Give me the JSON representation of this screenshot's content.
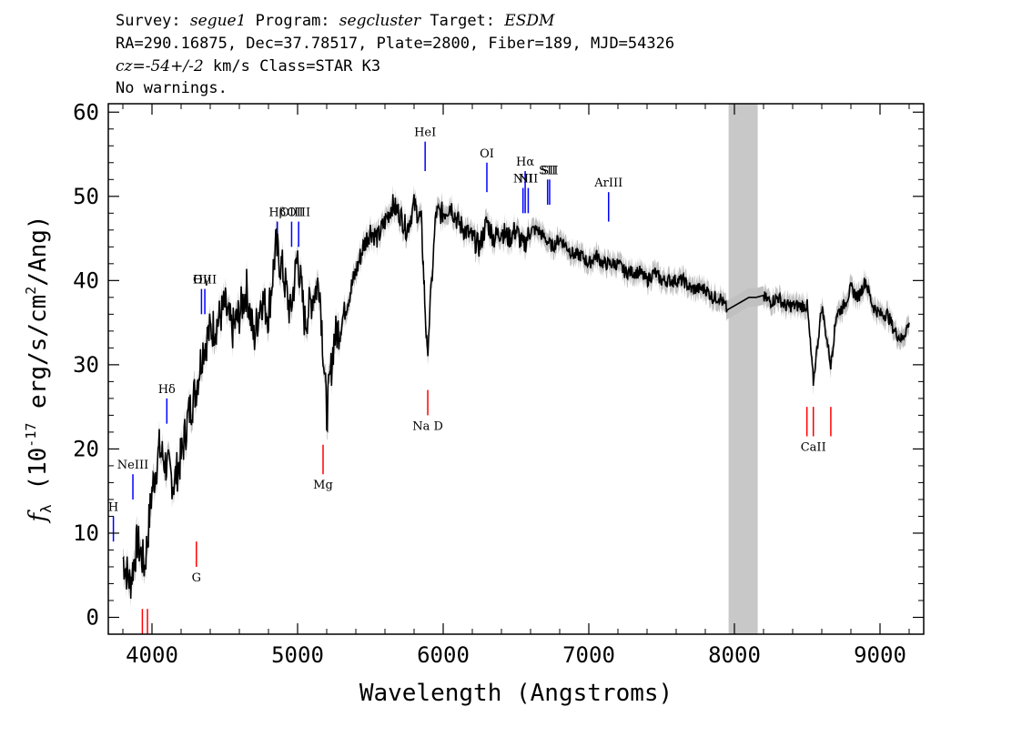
{
  "header": {
    "survey_label": "Survey:",
    "survey": "segue1",
    "program_label": "Program:",
    "program": "segcluster",
    "target_label": "Target:",
    "target": "ESDM",
    "line2": "RA=290.16875, Dec=37.78517, Plate=2800, Fiber=189, MJD=54326",
    "cz_prefix": "cz=",
    "cz_value": "-54+/-2",
    "cz_suffix": " km/s Class=STAR K3",
    "line4": "No warnings."
  },
  "chart_data": {
    "type": "line",
    "xlabel": "Wavelength (Angstroms)",
    "ylabel_prefix": "f",
    "ylabel_sub": "λ",
    "ylabel_mid": " (10",
    "ylabel_exp1": "-17",
    "ylabel_mid2": " erg/s/cm",
    "ylabel_exp2": "2",
    "ylabel_suffix": "/Ang)",
    "xlim": [
      3700,
      9300
    ],
    "ylim": [
      -2,
      61
    ],
    "xticks": [
      4000,
      5000,
      6000,
      7000,
      8000,
      9000
    ],
    "yticks": [
      0,
      10,
      20,
      30,
      40,
      50,
      60
    ],
    "xtick_labels": [
      "4000",
      "5000",
      "6000",
      "7000",
      "8000",
      "9000"
    ],
    "ytick_labels": [
      "0",
      "10",
      "20",
      "30",
      "40",
      "50",
      "60"
    ],
    "masked_region": [
      7960,
      8160
    ],
    "colors": {
      "spectrum": "#000000",
      "error": "#c0c0c0",
      "mask": "#c8c8c8",
      "emission": "#0000ff",
      "absorption": "#ff0000"
    },
    "spectrum_x": [
      3800,
      3850,
      3900,
      3950,
      4000,
      4050,
      4100,
      4150,
      4200,
      4250,
      4300,
      4350,
      4400,
      4450,
      4500,
      4550,
      4600,
      4650,
      4700,
      4750,
      4800,
      4850,
      4900,
      4950,
      5000,
      5050,
      5100,
      5150,
      5200,
      5250,
      5300,
      5350,
      5400,
      5450,
      5500,
      5550,
      5600,
      5650,
      5700,
      5750,
      5800,
      5850,
      5890,
      5950,
      6000,
      6050,
      6100,
      6150,
      6200,
      6250,
      6300,
      6350,
      6400,
      6450,
      6500,
      6550,
      6600,
      6650,
      6700,
      6750,
      6800,
      6850,
      6900,
      6950,
      7000,
      7050,
      7100,
      7150,
      7200,
      7250,
      7300,
      7350,
      7400,
      7450,
      7500,
      7550,
      7600,
      7650,
      7700,
      7750,
      7800,
      7850,
      7900,
      7950,
      8000,
      8050,
      8100,
      8150,
      8200,
      8250,
      8300,
      8350,
      8400,
      8450,
      8500,
      8542,
      8600,
      8662,
      8700,
      8750,
      8800,
      8850,
      8900,
      8950,
      9000,
      9050,
      9100,
      9150,
      9200
    ],
    "spectrum_y": [
      7,
      4,
      9,
      6,
      15,
      20,
      18,
      16,
      19,
      24,
      27,
      32,
      34,
      35,
      37,
      34,
      36,
      39,
      33,
      38,
      36,
      44,
      41,
      36,
      43,
      35,
      38,
      40,
      24,
      33,
      35,
      38,
      41,
      44,
      46,
      45,
      47,
      49,
      48,
      46,
      49,
      47,
      31,
      48,
      48,
      49,
      47,
      46,
      45,
      44,
      47,
      45,
      46,
      45,
      46,
      44,
      46,
      46,
      45,
      44,
      45,
      44,
      43,
      43,
      42,
      43,
      42,
      42,
      42,
      41,
      41,
      41,
      40,
      41,
      40,
      40,
      40,
      40,
      39,
      39,
      39,
      38,
      38,
      36.5,
      37,
      37.5,
      38,
      38,
      38,
      37.5,
      38,
      37,
      37,
      37,
      37,
      28,
      37,
      30,
      36,
      37,
      39,
      38,
      40,
      37,
      36,
      36,
      34,
      33,
      35
    ],
    "emission_lines": [
      {
        "label": "H",
        "x": 3735,
        "y0": 9,
        "y1": 12
      },
      {
        "label": "NeIII",
        "x": 3869,
        "y0": 14,
        "y1": 17
      },
      {
        "label": "Hδ",
        "x": 4102,
        "y0": 23,
        "y1": 26
      },
      {
        "label": "Hγ",
        "x": 4340,
        "y0": 36,
        "y1": 39
      },
      {
        "label": "OIII",
        "x": 4363,
        "y0": 36,
        "y1": 39
      },
      {
        "label": "Hβ",
        "x": 4861,
        "y0": 44,
        "y1": 47
      },
      {
        "label": "OIII",
        "x": 4959,
        "y0": 44,
        "y1": 47
      },
      {
        "label": "OIII",
        "x": 5007,
        "y0": 44,
        "y1": 47
      },
      {
        "label": "HeI",
        "x": 5876,
        "y0": 53,
        "y1": 56.5
      },
      {
        "label": "OI",
        "x": 6300,
        "y0": 50.5,
        "y1": 54
      },
      {
        "label": "NII",
        "x": 6548,
        "y0": 48,
        "y1": 51
      },
      {
        "label": "Hα",
        "x": 6563,
        "y0": 48,
        "y1": 53
      },
      {
        "label": "NII",
        "x": 6584,
        "y0": 48,
        "y1": 51
      },
      {
        "label": "SII",
        "x": 6717,
        "y0": 49,
        "y1": 52
      },
      {
        "label": "SII",
        "x": 6731,
        "y0": 49,
        "y1": 52
      },
      {
        "label": "ArIII",
        "x": 7136,
        "y0": 47,
        "y1": 50.5
      }
    ],
    "absorption_lines": [
      {
        "label": "",
        "x": 3934,
        "y0": -2,
        "y1": 1
      },
      {
        "label": "",
        "x": 3969,
        "y0": -2,
        "y1": 1
      },
      {
        "label": "G",
        "x": 4305,
        "y0": 6,
        "y1": 9
      },
      {
        "label": "Mg",
        "x": 5175,
        "y0": 17,
        "y1": 20.5
      },
      {
        "label": "Na D",
        "x": 5894,
        "y0": 24,
        "y1": 27
      },
      {
        "label": "",
        "x": 8498,
        "y0": 21.5,
        "y1": 25
      },
      {
        "label": "CaII",
        "x": 8542,
        "y0": 21.5,
        "y1": 25
      },
      {
        "label": "",
        "x": 8662,
        "y0": 21.5,
        "y1": 25
      }
    ]
  }
}
